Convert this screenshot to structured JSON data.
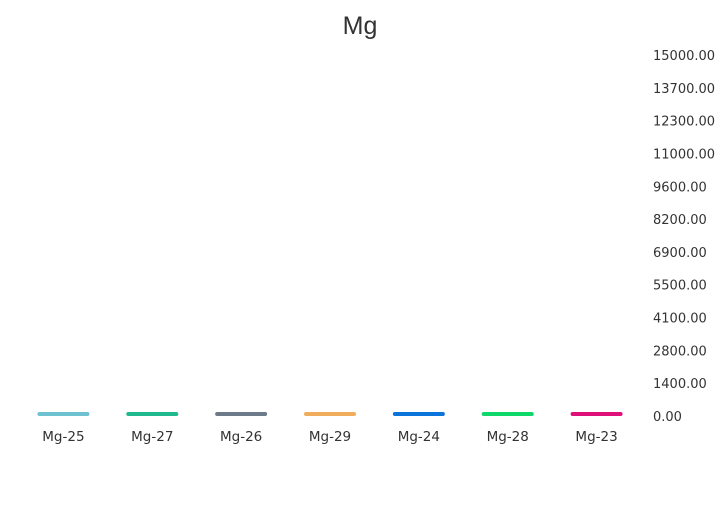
{
  "chart_data": {
    "type": "bar",
    "title": "Mg",
    "xlabel": "",
    "ylabel": "",
    "categories": [
      "Mg-25",
      "Mg-27",
      "Mg-26",
      "Mg-29",
      "Mg-24",
      "Mg-28",
      "Mg-23"
    ],
    "values": [
      55,
      30,
      45,
      35,
      20,
      30,
      15
    ],
    "colors": [
      "#6ec1cf",
      "#1fb88f",
      "#6c7a89",
      "#f0ad5c",
      "#0a74da",
      "#0fd86a",
      "#e0107a"
    ],
    "ylim": [
      0,
      15000
    ],
    "y_ticks": [
      "15000.00",
      "13700.00",
      "12300.00",
      "11000.00",
      "9600.00",
      "8200.00",
      "6900.00",
      "5500.00",
      "4100.00",
      "2800.00",
      "1400.00",
      "0.00"
    ],
    "y_axis_side": "right",
    "grid": false,
    "legend": "none"
  }
}
